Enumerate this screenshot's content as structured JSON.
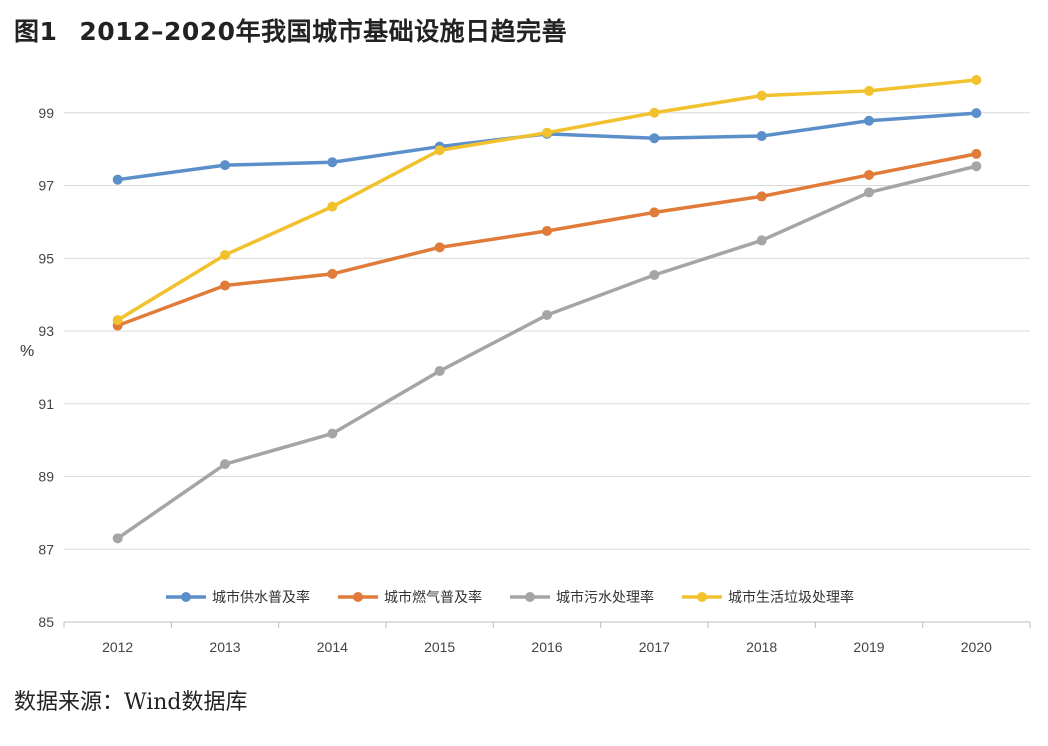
{
  "figure": {
    "label": "图1",
    "title": "2012–2020年我国城市基础设施日趋完善",
    "source": "数据来源：Wind数据库"
  },
  "chart_data": {
    "type": "line",
    "x": [
      "2012",
      "2013",
      "2014",
      "2015",
      "2016",
      "2017",
      "2018",
      "2019",
      "2020"
    ],
    "ylabel": "%",
    "ylim": [
      85,
      101
    ],
    "yticks": [
      85,
      87,
      89,
      91,
      93,
      95,
      97,
      99
    ],
    "grid": true,
    "legend": "bottom-inside",
    "series": [
      {
        "name": "城市供水普及率",
        "color": "#5b8fc9",
        "values": [
          97.16,
          97.56,
          97.64,
          98.07,
          98.42,
          98.3,
          98.36,
          98.78,
          98.99
        ]
      },
      {
        "name": "城市燃气普及率",
        "color": "#e07b39",
        "values": [
          93.15,
          94.25,
          94.57,
          95.3,
          95.75,
          96.26,
          96.7,
          97.29,
          97.87
        ]
      },
      {
        "name": "城市污水处理率",
        "color": "#a5a5a5",
        "values": [
          87.3,
          89.34,
          90.18,
          91.9,
          93.44,
          94.54,
          95.49,
          96.81,
          97.53
        ]
      },
      {
        "name": "城市生活垃圾处理率",
        "color": "#f2c12e",
        "values": [
          93.3,
          95.09,
          96.42,
          97.97,
          98.45,
          99.0,
          99.47,
          99.6,
          99.9
        ]
      }
    ]
  }
}
